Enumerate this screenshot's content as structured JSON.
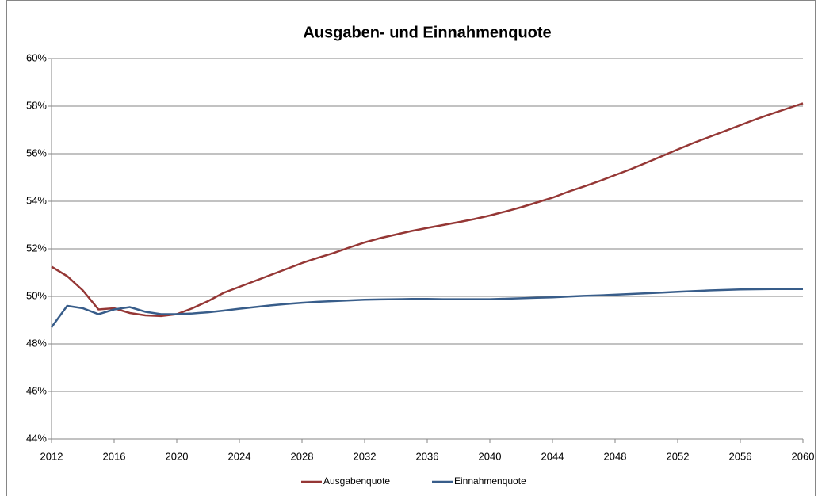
{
  "chart_data": {
    "type": "line",
    "title": "Ausgaben- und Einnahmenquote",
    "x": [
      2012,
      2013,
      2014,
      2015,
      2016,
      2017,
      2018,
      2019,
      2020,
      2021,
      2022,
      2023,
      2024,
      2025,
      2026,
      2027,
      2028,
      2029,
      2030,
      2031,
      2032,
      2033,
      2034,
      2035,
      2036,
      2037,
      2038,
      2039,
      2040,
      2041,
      2042,
      2043,
      2044,
      2045,
      2046,
      2047,
      2048,
      2049,
      2050,
      2051,
      2052,
      2053,
      2054,
      2055,
      2056,
      2057,
      2058,
      2059,
      2060
    ],
    "series": [
      {
        "name": "Ausgabenquote",
        "color": "#953735",
        "values": [
          51.25,
          50.85,
          50.25,
          49.45,
          49.5,
          49.3,
          49.2,
          49.17,
          49.25,
          49.5,
          49.8,
          50.15,
          50.4,
          50.65,
          50.9,
          51.15,
          51.4,
          51.62,
          51.82,
          52.05,
          52.27,
          52.45,
          52.6,
          52.75,
          52.88,
          53.0,
          53.12,
          53.25,
          53.4,
          53.57,
          53.75,
          53.95,
          54.15,
          54.4,
          54.62,
          54.85,
          55.1,
          55.35,
          55.62,
          55.9,
          56.18,
          56.45,
          56.7,
          56.95,
          57.2,
          57.45,
          57.68,
          57.9,
          58.12
        ]
      },
      {
        "name": "Einnahmenquote",
        "color": "#385d8a",
        "values": [
          48.7,
          49.6,
          49.5,
          49.25,
          49.45,
          49.55,
          49.35,
          49.25,
          49.25,
          49.28,
          49.33,
          49.4,
          49.48,
          49.55,
          49.62,
          49.68,
          49.73,
          49.77,
          49.8,
          49.83,
          49.86,
          49.87,
          49.88,
          49.89,
          49.89,
          49.88,
          49.88,
          49.88,
          49.88,
          49.9,
          49.92,
          49.94,
          49.96,
          49.99,
          50.02,
          50.04,
          50.07,
          50.1,
          50.13,
          50.16,
          50.19,
          50.22,
          50.25,
          50.27,
          50.29,
          50.3,
          50.31,
          50.31,
          50.31
        ]
      }
    ],
    "xlim": [
      2012,
      2060
    ],
    "xticks": [
      2012,
      2016,
      2020,
      2024,
      2028,
      2032,
      2036,
      2040,
      2044,
      2048,
      2052,
      2056,
      2060
    ],
    "ylim": [
      44,
      60
    ],
    "yticks": [
      {
        "value": 44,
        "label": "44%"
      },
      {
        "value": 46,
        "label": "46%"
      },
      {
        "value": 48,
        "label": "48%"
      },
      {
        "value": 50,
        "label": "50%"
      },
      {
        "value": 52,
        "label": "52%"
      },
      {
        "value": 54,
        "label": "54%"
      },
      {
        "value": 56,
        "label": "56%"
      },
      {
        "value": 58,
        "label": "58%"
      },
      {
        "value": 60,
        "label": "60%"
      }
    ],
    "grid": true,
    "legend": "bottom"
  }
}
